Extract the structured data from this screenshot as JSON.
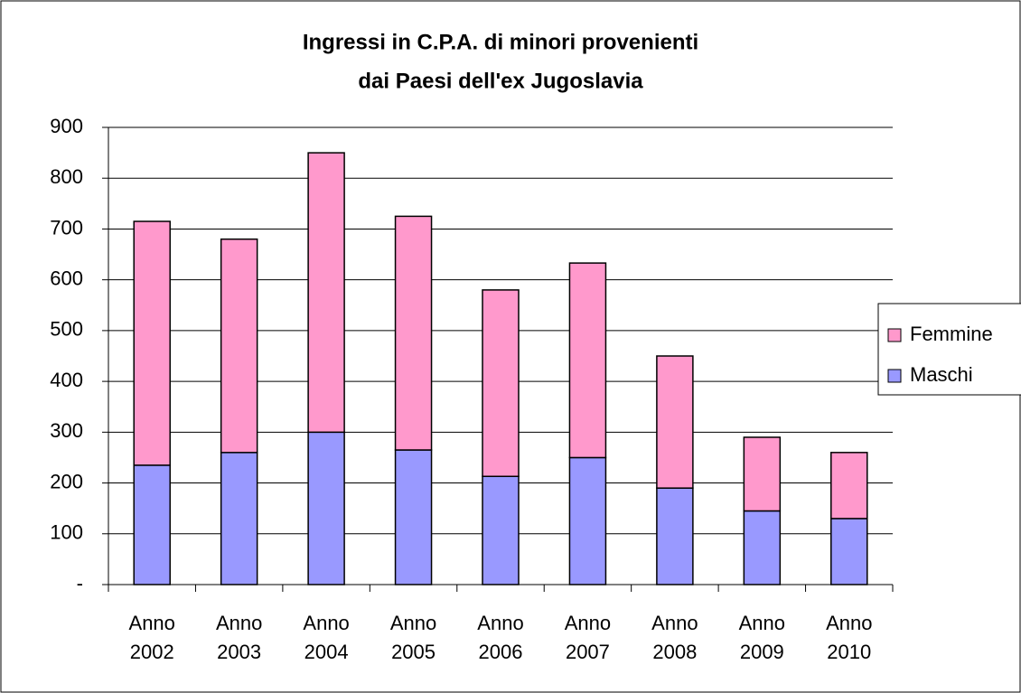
{
  "chart_data": {
    "type": "stacked_bar",
    "title": [
      "Ingressi in C.P.A. di minori provenienti",
      "dai Paesi dell'ex Jugoslavia"
    ],
    "categories": [
      "Anno 2002",
      "Anno 2003",
      "Anno 2004",
      "Anno 2005",
      "Anno 2006",
      "Anno 2007",
      "Anno 2008",
      "Anno 2009",
      "Anno 2010"
    ],
    "series": [
      {
        "name": "Maschi",
        "color": "#9999ff",
        "values": [
          235,
          260,
          300,
          265,
          213,
          250,
          190,
          145,
          130
        ]
      },
      {
        "name": "Femmine",
        "color": "#ff99cc",
        "values": [
          480,
          420,
          550,
          460,
          367,
          383,
          260,
          145,
          130
        ]
      }
    ],
    "ylim": [
      0,
      900
    ],
    "yticks": [
      {
        "value": 0,
        "label": "-"
      },
      100,
      200,
      300,
      400,
      500,
      600,
      700,
      800,
      900
    ],
    "grid": true,
    "legend": "right"
  }
}
